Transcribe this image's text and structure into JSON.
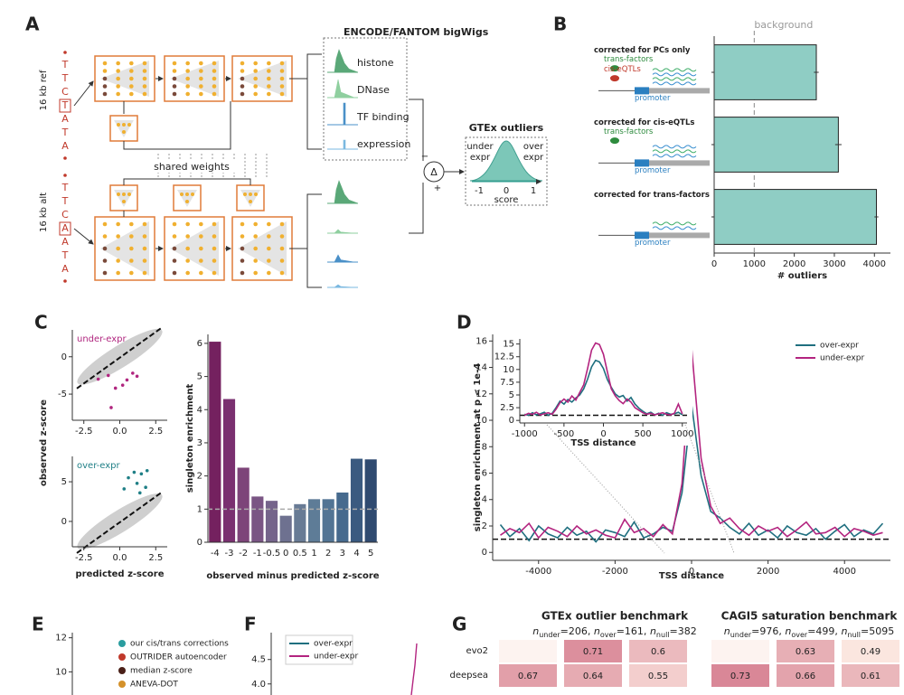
{
  "panel_labels": [
    "A",
    "B",
    "C",
    "D",
    "E",
    "F",
    "G"
  ],
  "diagram": {
    "ref_label": "16 kb ref",
    "alt_label": "16 kb alt",
    "ref_seq": [
      "T",
      "T",
      "C",
      "T",
      "A",
      "T",
      "A"
    ],
    "alt_seq": [
      "T",
      "T",
      "C",
      "A",
      "A",
      "T",
      "A"
    ],
    "bigwigs_title": "ENCODE/FANTOM bigWigs",
    "tracks": [
      "histone",
      "DNase",
      "TF binding",
      "expression"
    ],
    "shared": "shared weights",
    "delta": "Δ",
    "minus": "−",
    "plus": "+",
    "gtex_title": "GTEx outliers",
    "under_expr": [
      "under",
      "expr"
    ],
    "over_expr": [
      "over",
      "expr"
    ],
    "score_ticks": [
      -1,
      0,
      1
    ],
    "score_label": "score"
  },
  "chart_data": [
    {
      "type": "bar",
      "orientation": "horizontal",
      "categories": [
        "corrected for PCs only",
        "corrected for cis-eQTLs",
        "corrected for trans-factors"
      ],
      "values": [
        2550,
        3100,
        4050
      ],
      "errors": [
        60,
        80,
        50
      ],
      "color": "#8fcdc4",
      "xlim": [
        0,
        4400
      ],
      "xticks": [
        0,
        1000,
        2000,
        3000,
        4000
      ],
      "xlabel": "# outliers",
      "reference_line": {
        "value": 1000,
        "label": "background"
      },
      "annotations": [
        [
          {
            "text": "trans-factors",
            "color": "#2e8b3e"
          },
          {
            "text": "cis-eQTLs",
            "color": "#c0392b"
          },
          {
            "text": "promoter",
            "color": "#2a7fc0"
          }
        ],
        [
          {
            "text": "trans-factors",
            "color": "#2e8b3e"
          },
          {
            "text": "promoter",
            "color": "#2a7fc0"
          }
        ],
        [
          {
            "text": "promoter",
            "color": "#2a7fc0"
          }
        ]
      ]
    },
    {
      "type": "scatter",
      "xlim": [
        -3.3,
        3.3
      ],
      "ylim": [
        -8.5,
        3.6
      ],
      "xticks": [
        -2.5,
        {
          "value": 0,
          "label": "0.0"
        },
        2.5
      ],
      "yticks": [
        -5,
        0
      ],
      "ylabel": "observed z-score",
      "legend": "upper left",
      "series": [
        {
          "name": "under-expr",
          "color": "#b0267f",
          "x": [
            -0.8,
            0.5,
            0.9,
            -0.3,
            -0.6,
            0.2,
            1.2,
            -1.5
          ],
          "values": [
            -2.5,
            -3.1,
            -2.2,
            -4.2,
            -6.8,
            -3.8,
            -2.6,
            -3.0
          ]
        }
      ]
    },
    {
      "type": "scatter",
      "xlim": [
        -3.3,
        3.3
      ],
      "ylim": [
        -3.2,
        8.2
      ],
      "xticks": [
        -2.5,
        {
          "value": 0,
          "label": "0.0"
        },
        2.5
      ],
      "yticks": [
        0,
        5
      ],
      "xlabel": "predicted z-score",
      "legend": "upper left",
      "series": [
        {
          "name": "over-expr",
          "color": "#1f7f86",
          "x": [
            1.0,
            1.5,
            0.6,
            1.2,
            1.8,
            0.3,
            1.4,
            1.9
          ],
          "values": [
            6.2,
            6.0,
            5.5,
            4.8,
            4.3,
            4.1,
            3.6,
            6.4
          ]
        }
      ]
    },
    {
      "type": "bar",
      "categories": [
        "-4",
        "-3",
        "-2",
        "-1",
        "-0.5",
        "0",
        "0.5",
        "1",
        "2",
        "3",
        "4",
        "5"
      ],
      "values": [
        6.05,
        4.32,
        2.25,
        1.38,
        1.25,
        0.8,
        1.15,
        1.3,
        1.3,
        1.5,
        2.52,
        2.5
      ],
      "colors": [
        "#74215f",
        "#7a3070",
        "#7d4479",
        "#7a5584",
        "#75648b",
        "#6e7190",
        "#687b95",
        "#5e7c97",
        "#527494",
        "#466a8e",
        "#3a5a80",
        "#2f4a70"
      ],
      "ylim": [
        0,
        6.27
      ],
      "yticks": [
        0,
        1,
        2,
        3,
        4,
        5,
        6
      ],
      "ylabel": "singleton enrichment",
      "xlabel": "observed minus predicted z-score",
      "reference_line": {
        "value": 1
      }
    },
    {
      "type": "line",
      "xlim": [
        -5200,
        5200
      ],
      "ylim": [
        -0.6,
        16.5
      ],
      "xticks": [
        -4000,
        -2000,
        0,
        2000,
        4000
      ],
      "yticks": [
        0,
        2,
        4,
        6,
        8,
        10,
        12,
        14,
        16
      ],
      "xlabel": "TSS distance",
      "ylabel": "singleton enrichment at p < 1e-4",
      "legend": "upper right",
      "reference_line": {
        "value": 1
      },
      "x": [
        -5000,
        -4750,
        -4500,
        -4250,
        -4000,
        -3750,
        -3500,
        -3250,
        -3000,
        -2750,
        -2500,
        -2250,
        -2000,
        -1750,
        -1500,
        -1250,
        -1000,
        -750,
        -500,
        -250,
        0,
        250,
        500,
        750,
        1000,
        1250,
        1500,
        1750,
        2000,
        2250,
        2500,
        2750,
        3000,
        3250,
        3500,
        3750,
        4000,
        4250,
        4500,
        4750,
        5000
      ],
      "series": [
        {
          "name": "over-expr",
          "color": "#1f6f7f",
          "values": [
            2.1,
            1.2,
            1.8,
            0.9,
            2.0,
            1.4,
            1.1,
            1.9,
            1.3,
            1.6,
            0.8,
            1.7,
            1.5,
            1.2,
            2.3,
            1.1,
            1.4,
            1.9,
            1.6,
            4.5,
            11.2,
            5.8,
            3.1,
            2.6,
            1.9,
            1.4,
            2.2,
            1.3,
            1.7,
            1.1,
            2.0,
            1.5,
            1.3,
            1.8,
            1.0,
            1.6,
            2.1,
            1.2,
            1.7,
            1.4,
            2.2
          ]
        },
        {
          "name": "under-expr",
          "color": "#b3247f",
          "values": [
            1.3,
            1.8,
            1.5,
            2.2,
            1.1,
            1.9,
            1.6,
            1.2,
            2.0,
            1.4,
            1.7,
            1.3,
            1.1,
            2.5,
            1.5,
            1.8,
            1.2,
            2.1,
            1.4,
            5.2,
            15.5,
            7.1,
            3.5,
            2.2,
            2.6,
            1.8,
            1.3,
            2.0,
            1.6,
            1.9,
            1.2,
            1.7,
            2.3,
            1.4,
            1.5,
            1.9,
            1.2,
            1.8,
            1.6,
            1.3,
            1.5
          ]
        }
      ]
    },
    {
      "type": "line",
      "xlim": [
        -1060,
        1060
      ],
      "ylim": [
        -0.5,
        16
      ],
      "xticks": [
        -1000,
        -500,
        0,
        500,
        1000
      ],
      "yticks": [
        0,
        2.5,
        5,
        7.5,
        10,
        12.5,
        15
      ],
      "xlabel": "TSS distance",
      "reference_line": {
        "value": 1
      },
      "x": [
        -1000,
        -950,
        -900,
        -850,
        -800,
        -750,
        -700,
        -650,
        -600,
        -550,
        -500,
        -450,
        -400,
        -350,
        -300,
        -250,
        -200,
        -150,
        -100,
        -50,
        0,
        50,
        100,
        150,
        200,
        250,
        300,
        350,
        400,
        450,
        500,
        550,
        600,
        650,
        700,
        750,
        800,
        850,
        900,
        950,
        1000
      ],
      "series": [
        {
          "color": "#1f6f7f",
          "values": [
            1.2,
            1.0,
            1.5,
            1.1,
            1.3,
            1.6,
            1.0,
            1.4,
            2.5,
            3.8,
            3.2,
            4.1,
            3.6,
            4.4,
            5.0,
            6.2,
            8.1,
            10.5,
            11.8,
            11.5,
            10.2,
            8.0,
            6.5,
            5.2,
            4.6,
            4.9,
            3.8,
            4.5,
            3.2,
            2.4,
            1.8,
            1.3,
            1.6,
            1.1,
            1.4,
            1.0,
            1.5,
            1.2,
            1.3,
            1.6,
            1.1
          ]
        },
        {
          "color": "#b3247f",
          "values": [
            1.0,
            1.4,
            1.2,
            1.6,
            1.1,
            1.3,
            1.5,
            1.2,
            2.2,
            3.5,
            4.2,
            3.6,
            4.8,
            4.0,
            5.5,
            7.0,
            10.2,
            13.8,
            15.2,
            14.9,
            13.0,
            9.5,
            6.2,
            4.8,
            3.9,
            3.3,
            4.2,
            3.6,
            2.5,
            2.0,
            1.5,
            1.2,
            1.4,
            1.1,
            1.3,
            1.5,
            1.2,
            1.1,
            1.4,
            3.2,
            1.3
          ]
        }
      ]
    },
    {
      "type": "scatter",
      "ylim": [
        7,
        12.3
      ],
      "yticks": [
        10,
        12
      ],
      "legend": "upper right",
      "series": [
        {
          "name": "our cis/trans corrections",
          "color": "#2a9d9f"
        },
        {
          "name": "OUTRIDER autoencoder",
          "color": "#c0392b"
        },
        {
          "name": "median z-score",
          "color": "#4a2018"
        },
        {
          "name": "ANEVA-DOT",
          "color": "#d4912a"
        }
      ]
    },
    {
      "type": "line",
      "ylim": [
        3.2,
        5.05
      ],
      "yticks": [
        {
          "value": 4,
          "label": "4.0"
        },
        4.5
      ],
      "legend": "upper left",
      "series": [
        {
          "name": "over-expr",
          "color": "#1f6f7f"
        },
        {
          "name": "under-expr",
          "color": "#b3247f"
        }
      ]
    },
    {
      "type": "heatmap",
      "rows": [
        "evo2",
        "deepsea"
      ],
      "color_range": [
        "#fbe6df",
        "#d98797"
      ],
      "groups": [
        {
          "title": "GTEx outlier benchmark",
          "subtitle": [
            "n",
            "under",
            "=206, ",
            "n",
            "over",
            "=161, ",
            "n",
            "null",
            "=382"
          ],
          "values": [
            [
              null,
              0.71,
              0.6
            ],
            [
              0.67,
              0.64,
              0.55
            ]
          ]
        },
        {
          "title": "CAGI5 saturation benchmark",
          "subtitle": [
            "n",
            "under",
            "=976, ",
            "n",
            "over",
            "=499, ",
            "n",
            "null",
            "=5095"
          ],
          "values": [
            [
              null,
              0.63,
              0.49
            ],
            [
              0.73,
              0.66,
              0.61
            ]
          ]
        }
      ]
    }
  ]
}
